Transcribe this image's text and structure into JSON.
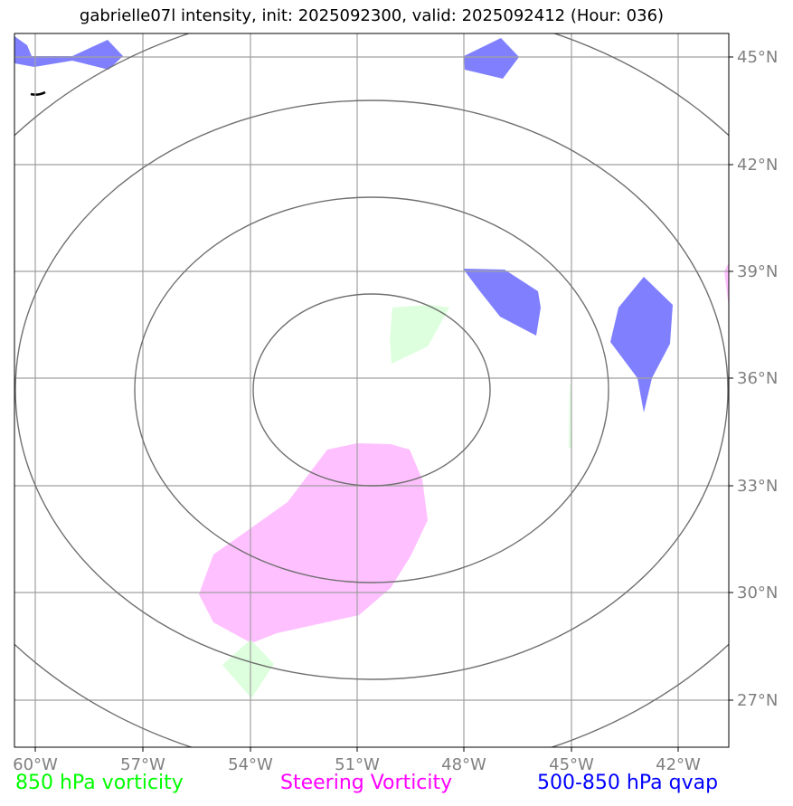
{
  "title": "gabrielle07l intensity, init: 2025092300, valid: 2025092412 (Hour: 036)",
  "map": {
    "lon_ticks": [
      "60°W",
      "57°W",
      "54°W",
      "51°W",
      "48°W",
      "45°W",
      "42°W"
    ],
    "lat_ticks": [
      "45°N",
      "42°N",
      "39°N",
      "36°N",
      "33°N",
      "30°N",
      "27°N"
    ],
    "grid_color": "#a0a0a0",
    "range_ring_color": "#707070"
  },
  "fields": {
    "vort850_color": "#ddffdd",
    "steering_color": "#ffc0ff",
    "qvap_color": "#8080ff"
  },
  "legend": {
    "vort850": "850 hPa vorticity",
    "steering": "Steering Vorticity",
    "qvap": "500-850 hPa qvap"
  }
}
